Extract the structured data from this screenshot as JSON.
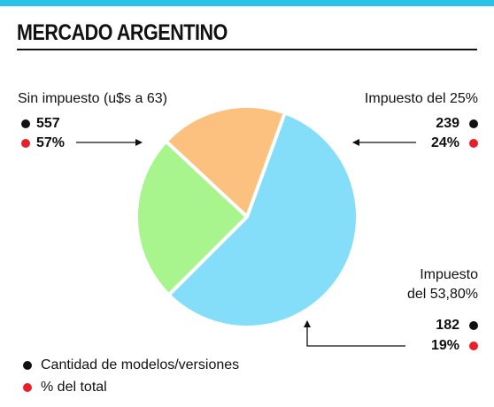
{
  "header": {
    "title": "MERCADO ARGENTINO",
    "accent_color": "#29c3e8"
  },
  "chart_data": {
    "type": "pie",
    "slices": [
      {
        "label": "Sin impuesto (u$s a 63)",
        "count": "557",
        "percent_label": "57%",
        "value": 557,
        "color": "#84def9"
      },
      {
        "label": "Impuesto del 25%",
        "count": "239",
        "percent_label": "24%",
        "value": 239,
        "color": "#a8f58e"
      },
      {
        "label_line1": "Impuesto",
        "label_line2": "del 53,80%",
        "count": "182",
        "percent_label": "19%",
        "value": 182,
        "color": "#fcc17e"
      }
    ]
  },
  "legend": {
    "items": [
      {
        "text": "Cantidad de modelos/versiones",
        "marker_color": "#111111"
      },
      {
        "text": "% del total",
        "marker_color": "#e8202a"
      }
    ]
  }
}
